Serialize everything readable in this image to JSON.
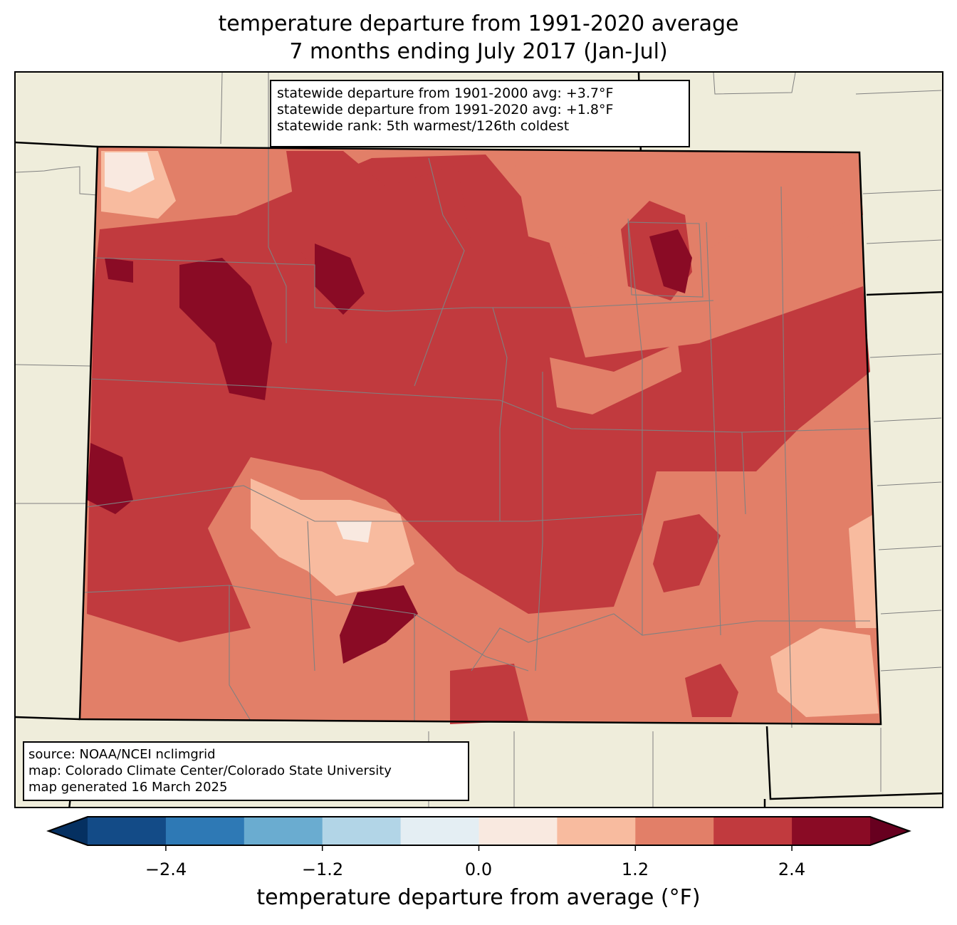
{
  "title": {
    "line1": "temperature departure from 1991-2020 average",
    "line2": "7 months ending July 2017 (Jan-Jul)"
  },
  "info_box": {
    "line1": "statewide departure from 1901-2000 avg: +3.7°F",
    "line2": "statewide departure from 1991-2020 avg: +1.8°F",
    "line3": "statewide rank: 5th warmest/126th coldest"
  },
  "source_box": {
    "line1": "source: NOAA/NCEI nclimgrid",
    "line2": "map: Colorado Climate Center/Colorado State University",
    "line3": "map generated 16 March 2025"
  },
  "colorbar": {
    "label": "temperature departure from average (°F)",
    "ticks": [
      "−2.4",
      "−1.2",
      "0.0",
      "1.2",
      "2.4"
    ],
    "tick_values": [
      -2.4,
      -1.2,
      0.0,
      1.2,
      2.4
    ],
    "bounds": [
      -3.0,
      -2.4,
      -1.8,
      -1.2,
      -0.6,
      0.0,
      0.6,
      1.2,
      1.8,
      2.4,
      3.0
    ],
    "colors": [
      "#134b87",
      "#2e79b5",
      "#6aacd0",
      "#b2d5e7",
      "#e4eef3",
      "#f9e9e0",
      "#f8bb9f",
      "#e27f68",
      "#c13a3e",
      "#8a0b25"
    ],
    "extend_low": "#053061",
    "extend_high": "#67001f"
  },
  "map_colors": {
    "background": "#efeddb",
    "county_line": "#808080",
    "state_line": "#000000"
  }
}
